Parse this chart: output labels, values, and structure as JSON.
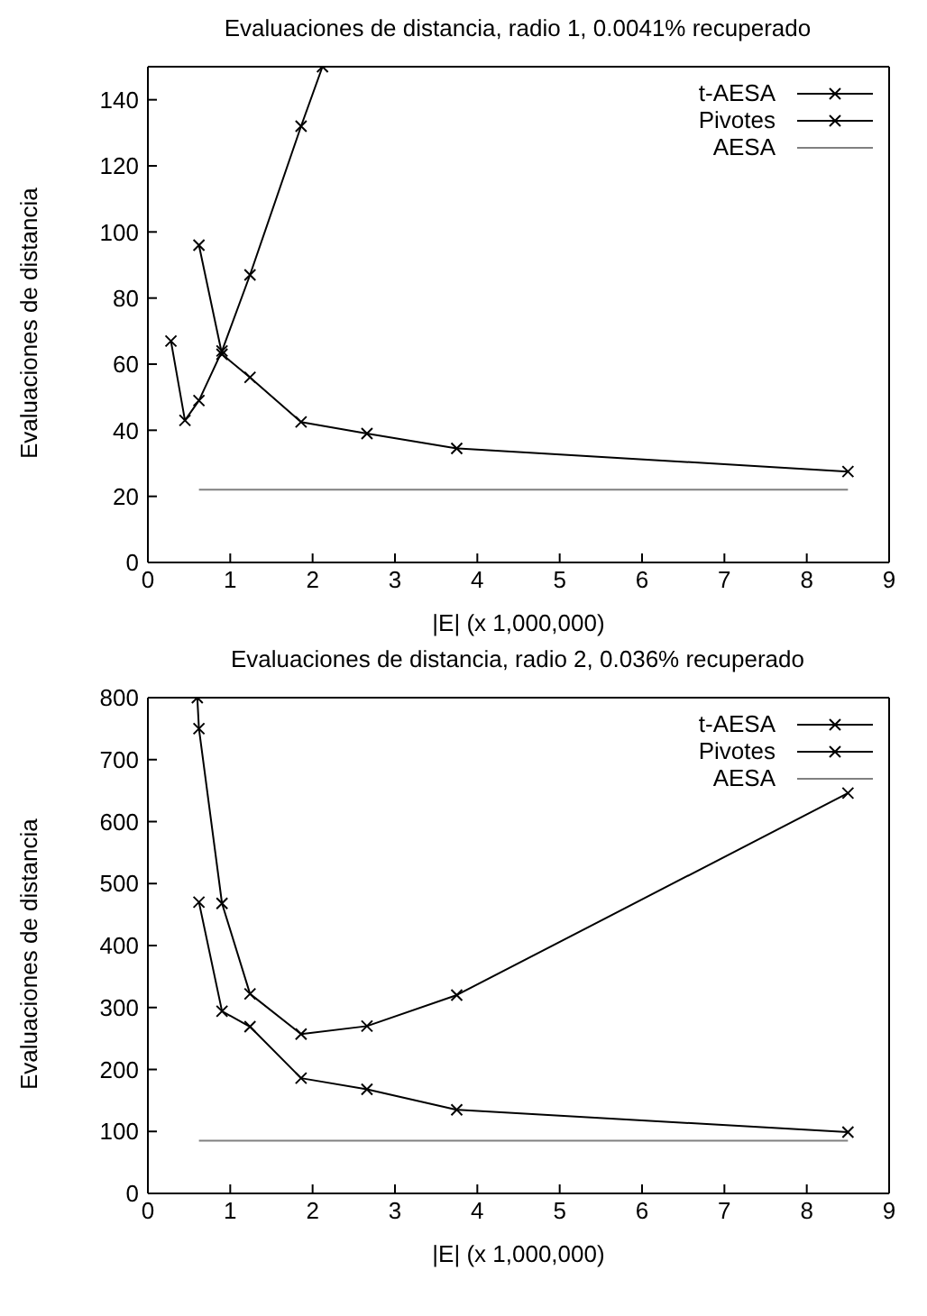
{
  "chart_data": [
    {
      "type": "line",
      "title": "Evaluaciones de distancia, radio 1, 0.0041% recuperado",
      "xlabel": "|E| (x 1,000,000)",
      "ylabel": "Evaluaciones de distancia",
      "xlim": [
        0,
        9
      ],
      "xticks": [
        0,
        1,
        2,
        3,
        4,
        5,
        6,
        7,
        8,
        9
      ],
      "ylim": [
        0,
        150
      ],
      "yticks": [
        0,
        20,
        40,
        60,
        80,
        100,
        120,
        140
      ],
      "legend": "top right",
      "series": [
        {
          "name": "t-AESA",
          "color": "#000000",
          "marker": "cross",
          "x": [
            0.62,
            0.9,
            1.24,
            1.86,
            2.66,
            3.75,
            8.5
          ],
          "values": [
            96,
            63,
            56,
            42.5,
            39,
            34.5,
            27.5
          ]
        },
        {
          "name": "Pivotes",
          "color": "#000000",
          "marker": "cross",
          "x": [
            0.28,
            0.45,
            0.62,
            0.9,
            1.24,
            1.86,
            2.12
          ],
          "values": [
            67,
            43,
            49,
            64,
            87,
            132,
            150
          ]
        },
        {
          "name": "AESA",
          "color": "#808080",
          "marker": "none",
          "x": [
            0.62,
            8.5
          ],
          "values": [
            22,
            22
          ]
        }
      ]
    },
    {
      "type": "line",
      "title": "Evaluaciones de distancia, radio 2, 0.036% recuperado",
      "xlabel": "|E| (x 1,000,000)",
      "ylabel": "Evaluaciones de distancia",
      "xlim": [
        0,
        9
      ],
      "xticks": [
        0,
        1,
        2,
        3,
        4,
        5,
        6,
        7,
        8,
        9
      ],
      "ylim": [
        0,
        800
      ],
      "yticks": [
        0,
        100,
        200,
        300,
        400,
        500,
        600,
        700,
        800
      ],
      "legend": "top right",
      "series": [
        {
          "name": "t-AESA",
          "color": "#000000",
          "marker": "cross",
          "x": [
            0.62,
            0.9,
            1.24,
            1.86,
            2.66,
            3.75,
            8.5
          ],
          "values": [
            470,
            294,
            269,
            186,
            168,
            135,
            99
          ]
        },
        {
          "name": "Pivotes",
          "color": "#000000",
          "marker": "cross",
          "x": [
            0.6,
            0.62,
            0.9,
            1.24,
            1.86,
            2.66,
            3.75,
            8.5
          ],
          "values": [
            800,
            750,
            468,
            322,
            257,
            270,
            320,
            646
          ]
        },
        {
          "name": "AESA",
          "color": "#808080",
          "marker": "none",
          "x": [
            0.62,
            8.5
          ],
          "values": [
            85,
            85
          ]
        }
      ]
    }
  ]
}
